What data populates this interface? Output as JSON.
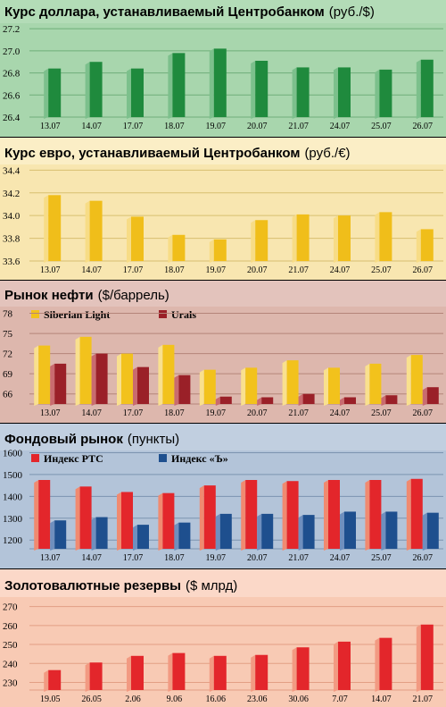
{
  "panels": [
    {
      "title": "Курс доллара, устанавливаемый Центробанком",
      "unit": "(руб./$)",
      "colors": {
        "title_bg": "#b3dcb7",
        "plot_bg": "#a8d6ad",
        "grid": "#6fae7a"
      },
      "chart_data": {
        "type": "bar",
        "categories": [
          "13.07",
          "14.07",
          "17.07",
          "18.07",
          "19.07",
          "20.07",
          "21.07",
          "24.07",
          "25.07",
          "26.07"
        ],
        "yticks": [
          26.4,
          26.6,
          26.8,
          27.0,
          27.2
        ],
        "ylim": [
          26.4,
          27.25
        ],
        "series": [
          {
            "color": "#1f8a3d",
            "side": "#7cc08c",
            "values": [
              26.84,
              26.9,
              26.84,
              26.98,
              27.02,
              26.91,
              26.85,
              26.85,
              26.83,
              26.92
            ]
          }
        ]
      }
    },
    {
      "title": "Курс евро, устанавливаемый Центробанком",
      "unit": "(руб./€)",
      "colors": {
        "title_bg": "#fbeec6",
        "plot_bg": "#f8e6b0",
        "grid": "#d8bf70"
      },
      "chart_data": {
        "type": "bar",
        "categories": [
          "13.07",
          "14.07",
          "17.07",
          "18.07",
          "19.07",
          "20.07",
          "21.07",
          "24.07",
          "25.07",
          "26.07"
        ],
        "yticks": [
          33.6,
          33.8,
          34.0,
          34.2,
          34.4
        ],
        "ylim": [
          33.6,
          34.45
        ],
        "series": [
          {
            "color": "#f0be1a",
            "side": "#f7dc86",
            "values": [
              34.18,
              34.13,
              33.99,
              33.83,
              33.79,
              33.96,
              34.01,
              34.0,
              34.03,
              33.88
            ]
          }
        ]
      }
    },
    {
      "title": "Рынок нефти",
      "unit": "($/баррель)",
      "colors": {
        "title_bg": "#e3c3bc",
        "plot_bg": "#ddb7ad",
        "grid": "#b5857a"
      },
      "legend": [
        "Siberian Light",
        "Urals"
      ],
      "chart_data": {
        "type": "bar",
        "categories": [
          "13.07",
          "14.07",
          "17.07",
          "18.07",
          "19.07",
          "20.07",
          "21.07",
          "24.07",
          "25.07",
          "26.07"
        ],
        "yticks": [
          66,
          69,
          72,
          75,
          78
        ],
        "ylim": [
          64.5,
          79
        ],
        "series": [
          {
            "name": "Siberian Light",
            "color": "#f2c21c",
            "side": "#f9e08e",
            "values": [
              73.2,
              74.5,
              72.0,
              73.3,
              69.6,
              69.9,
              71.0,
              69.9,
              70.5,
              71.8
            ]
          },
          {
            "name": "Urals",
            "color": "#9a2028",
            "side": "#c96b6f",
            "values": [
              70.5,
              72.0,
              70.0,
              68.8,
              65.6,
              65.5,
              66.0,
              65.5,
              65.8,
              67.0
            ]
          }
        ]
      }
    },
    {
      "title": "Фондовый рынок",
      "unit": "(пункты)",
      "colors": {
        "title_bg": "#c1cfe0",
        "plot_bg": "#b3c4d9",
        "grid": "#7c93b0"
      },
      "legend": [
        "Индекс РТС",
        "Индекс «Ъ»"
      ],
      "chart_data": {
        "type": "bar",
        "categories": [
          "13.07",
          "14.07",
          "17.07",
          "18.07",
          "19.07",
          "20.07",
          "21.07",
          "24.07",
          "25.07",
          "26.07"
        ],
        "yticks": [
          1200,
          1300,
          1400,
          1500,
          1600
        ],
        "ylim": [
          1160,
          1610
        ],
        "series": [
          {
            "name": "Индекс РТС",
            "color": "#e3262b",
            "side": "#f08a70",
            "values": [
              1475,
              1445,
              1420,
              1415,
              1450,
              1475,
              1470,
              1475,
              1475,
              1480
            ]
          },
          {
            "name": "Индекс «Ъ»",
            "color": "#1e4f8e",
            "side": "#6f8fbe",
            "values": [
              1290,
              1305,
              1270,
              1280,
              1320,
              1320,
              1315,
              1330,
              1330,
              1325
            ]
          }
        ]
      }
    },
    {
      "title": "Золотовалютные резервы",
      "unit": "($ млрд)",
      "colors": {
        "title_bg": "#fbd8c8",
        "plot_bg": "#f8cab4",
        "grid": "#e29f84"
      },
      "chart_data": {
        "type": "bar",
        "categories": [
          "19.05",
          "26.05",
          "2.06",
          "9.06",
          "16.06",
          "23.06",
          "30.06",
          "7.07",
          "14.07",
          "21.07"
        ],
        "yticks": [
          230,
          240,
          250,
          260,
          270
        ],
        "ylim": [
          226,
          275
        ],
        "series": [
          {
            "color": "#e3262b",
            "side": "#f29a82",
            "values": [
              236.5,
              240.5,
              244,
              245.5,
              244,
              244.5,
              248.5,
              251.5,
              253.5,
              260.5
            ]
          }
        ]
      }
    }
  ]
}
